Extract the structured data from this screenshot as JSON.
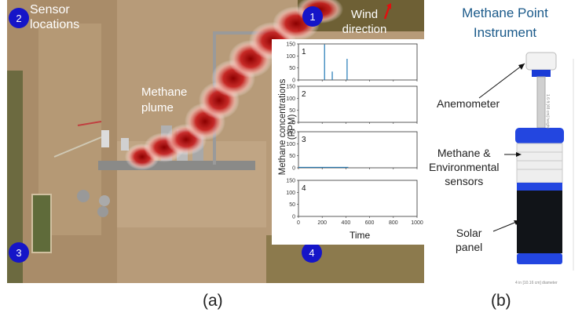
{
  "panel_a": {
    "sensor_markers": [
      "1",
      "2",
      "3",
      "4"
    ],
    "sensor_locations_label": "Sensor\nlocations",
    "wind_direction_label": "Wind\ndirection",
    "plume_label": "Methane\nplume",
    "caption": "(a)"
  },
  "chart_data": {
    "type": "line",
    "title": "",
    "xlabel": "Time",
    "ylabel": "Methane concentrations (PPM)",
    "xlim": [
      0,
      1000
    ],
    "ylim": [
      0,
      150
    ],
    "x_ticks": [
      0,
      200,
      400,
      600,
      800,
      1000
    ],
    "y_ticks": [
      0,
      50,
      100,
      150
    ],
    "subplots": [
      {
        "label": "1",
        "spikes": [
          {
            "x": 220,
            "y": 148
          },
          {
            "x": 285,
            "y": 35
          },
          {
            "x": 410,
            "y": 88
          }
        ]
      },
      {
        "label": "2",
        "spikes": []
      },
      {
        "label": "3",
        "spikes": [],
        "baseline_range": [
          0,
          420
        ],
        "baseline_y": 2
      },
      {
        "label": "4",
        "spikes": []
      }
    ],
    "grid": false
  },
  "panel_b": {
    "title": "Methane Point\nInstrument",
    "anemometer_label": "Anemometer",
    "sensors_label": "Methane &\nEnvironmental\nsensors",
    "solar_label": "Solar\npanel",
    "height_note": "1.6 ft [48 cm] height",
    "diameter_note": "4 in [10.16 cm] diameter",
    "caption": "(b)"
  },
  "colors": {
    "marker_blue": "#1515c8",
    "title_blue": "#1b5a8a",
    "plume_red": "#b01010",
    "series_blue": "#1f77b4"
  }
}
